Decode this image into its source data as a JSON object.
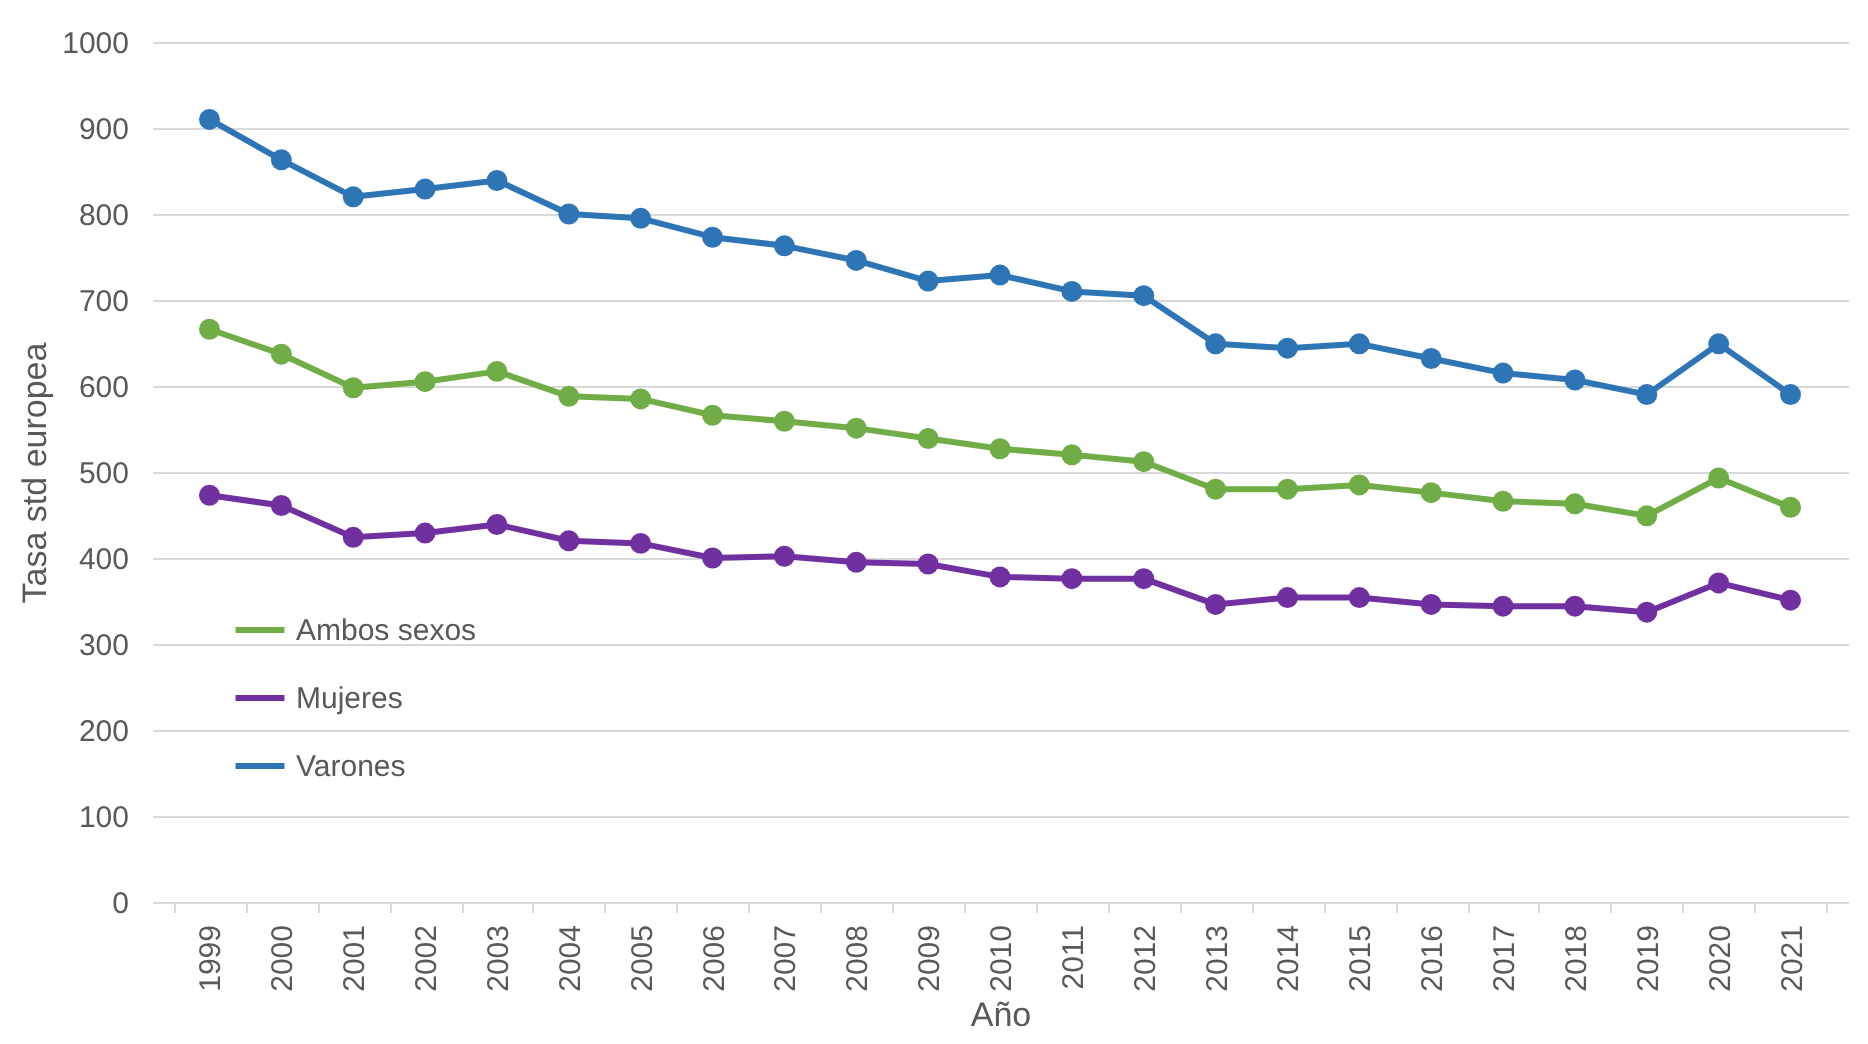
{
  "chart_data": {
    "type": "line",
    "xlabel": "Año",
    "ylabel": "Tasa std europea",
    "categories": [
      "1999",
      "2000",
      "2001",
      "2002",
      "2003",
      "2004",
      "2005",
      "2006",
      "2007",
      "2008",
      "2009",
      "2010",
      "2011",
      "2012",
      "2013",
      "2014",
      "2015",
      "2016",
      "2017",
      "2018",
      "2019",
      "2020",
      "2021"
    ],
    "series": [
      {
        "name": "Ambos sexos",
        "color": "#70ad47",
        "values": [
          666,
          637,
          598,
          605,
          617,
          588,
          585,
          566,
          559,
          551,
          539,
          527,
          520,
          512,
          480,
          480,
          485,
          476,
          466,
          463,
          449,
          493,
          459
        ]
      },
      {
        "name": "Mujeres",
        "color": "#7030a0",
        "values": [
          473,
          461,
          424,
          429,
          439,
          420,
          417,
          400,
          402,
          395,
          393,
          378,
          376,
          376,
          346,
          354,
          354,
          346,
          344,
          344,
          337,
          371,
          351
        ]
      },
      {
        "name": "Varones",
        "color": "#2e75b6",
        "values": [
          910,
          863,
          820,
          829,
          839,
          800,
          795,
          773,
          763,
          746,
          722,
          729,
          710,
          705,
          649,
          644,
          649,
          632,
          615,
          607,
          590,
          649,
          590
        ]
      }
    ],
    "ylim": [
      0,
      1000
    ],
    "yticks": [
      0,
      100,
      200,
      300,
      400,
      500,
      600,
      700,
      800,
      900,
      1000
    ],
    "grid": "y",
    "legend": "left",
    "marker": "circle",
    "line_style": "solid"
  }
}
